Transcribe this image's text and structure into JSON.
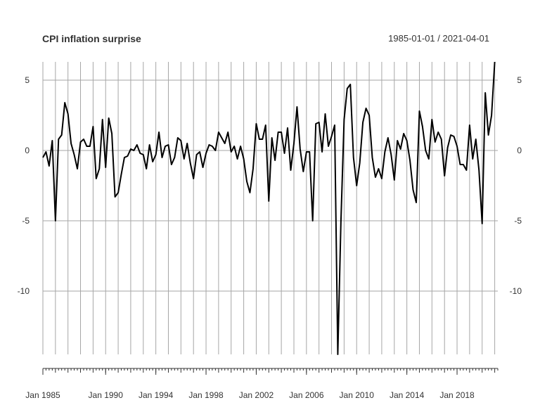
{
  "chart_data": {
    "type": "line",
    "title": "CPI inflation surprise",
    "date_range_label": "1985-01-01 / 2021-04-01",
    "xlabel": "",
    "ylabel": "",
    "x_start": "1985-01-01",
    "x_end": "2021-04-01",
    "frequency": "quarterly",
    "ylim": [
      -14.5,
      6.3
    ],
    "grid": true,
    "y_ticks": [
      5,
      0,
      -5,
      -10
    ],
    "y_tick_labels": [
      "5",
      "0",
      "-5",
      "-10"
    ],
    "x_tick_labels": [
      "Jan 1985",
      "Jan 1990",
      "Jan 1994",
      "Jan 1998",
      "Jan 2002",
      "Jan 2006",
      "Jan 2010",
      "Jan 2014",
      "Jan 2018"
    ],
    "x_tick_dates": [
      "1985-01-01",
      "1990-01-01",
      "1994-01-01",
      "1998-01-01",
      "2002-01-01",
      "2006-01-01",
      "2010-01-01",
      "2014-01-01",
      "2018-01-01"
    ],
    "series": [
      {
        "color": "#000000",
        "values": [
          -0.5,
          -0.1,
          -1.1,
          0.7,
          -5.0,
          0.8,
          1.1,
          3.4,
          2.6,
          0.5,
          -0.3,
          -1.3,
          0.6,
          0.8,
          0.3,
          0.3,
          1.7,
          -2.0,
          -1.3,
          2.2,
          -1.2,
          2.3,
          1.2,
          -3.3,
          -3.0,
          -1.7,
          -0.5,
          -0.4,
          0.1,
          0.0,
          0.4,
          -0.2,
          -0.3,
          -1.3,
          0.4,
          -0.8,
          -0.3,
          1.3,
          -0.5,
          0.3,
          0.4,
          -1.0,
          -0.5,
          0.9,
          0.7,
          -0.6,
          0.5,
          -0.9,
          -2.0,
          -0.3,
          -0.1,
          -1.2,
          -0.2,
          0.4,
          0.3,
          0.0,
          1.3,
          0.9,
          0.5,
          1.3,
          -0.1,
          0.3,
          -0.6,
          0.3,
          -0.6,
          -2.2,
          -3.0,
          -1.3,
          1.9,
          0.8,
          0.8,
          1.8,
          -3.6,
          0.9,
          -0.7,
          1.3,
          1.3,
          -0.2,
          1.6,
          -1.4,
          0.5,
          3.1,
          0.1,
          -1.5,
          -0.1,
          -0.1,
          -5.0,
          1.9,
          2.0,
          -0.1,
          2.6,
          0.3,
          1.0,
          1.8,
          -14.5,
          -5.0,
          2.2,
          4.4,
          4.7,
          -0.5,
          -2.5,
          -0.9,
          2.0,
          3.0,
          2.5,
          -0.5,
          -1.9,
          -1.3,
          -2.0,
          -0.1,
          0.9,
          -0.3,
          -2.1,
          0.7,
          0.1,
          1.2,
          0.7,
          -0.7,
          -2.8,
          -3.7,
          2.8,
          1.7,
          0.0,
          -0.6,
          2.2,
          0.6,
          1.3,
          0.8,
          -1.8,
          0.2,
          1.1,
          1.0,
          0.3,
          -1.0,
          -1.0,
          -1.4,
          1.8,
          -0.6,
          0.8,
          -1.4,
          -5.2,
          4.1,
          1.1,
          2.5,
          6.3
        ]
      }
    ]
  }
}
